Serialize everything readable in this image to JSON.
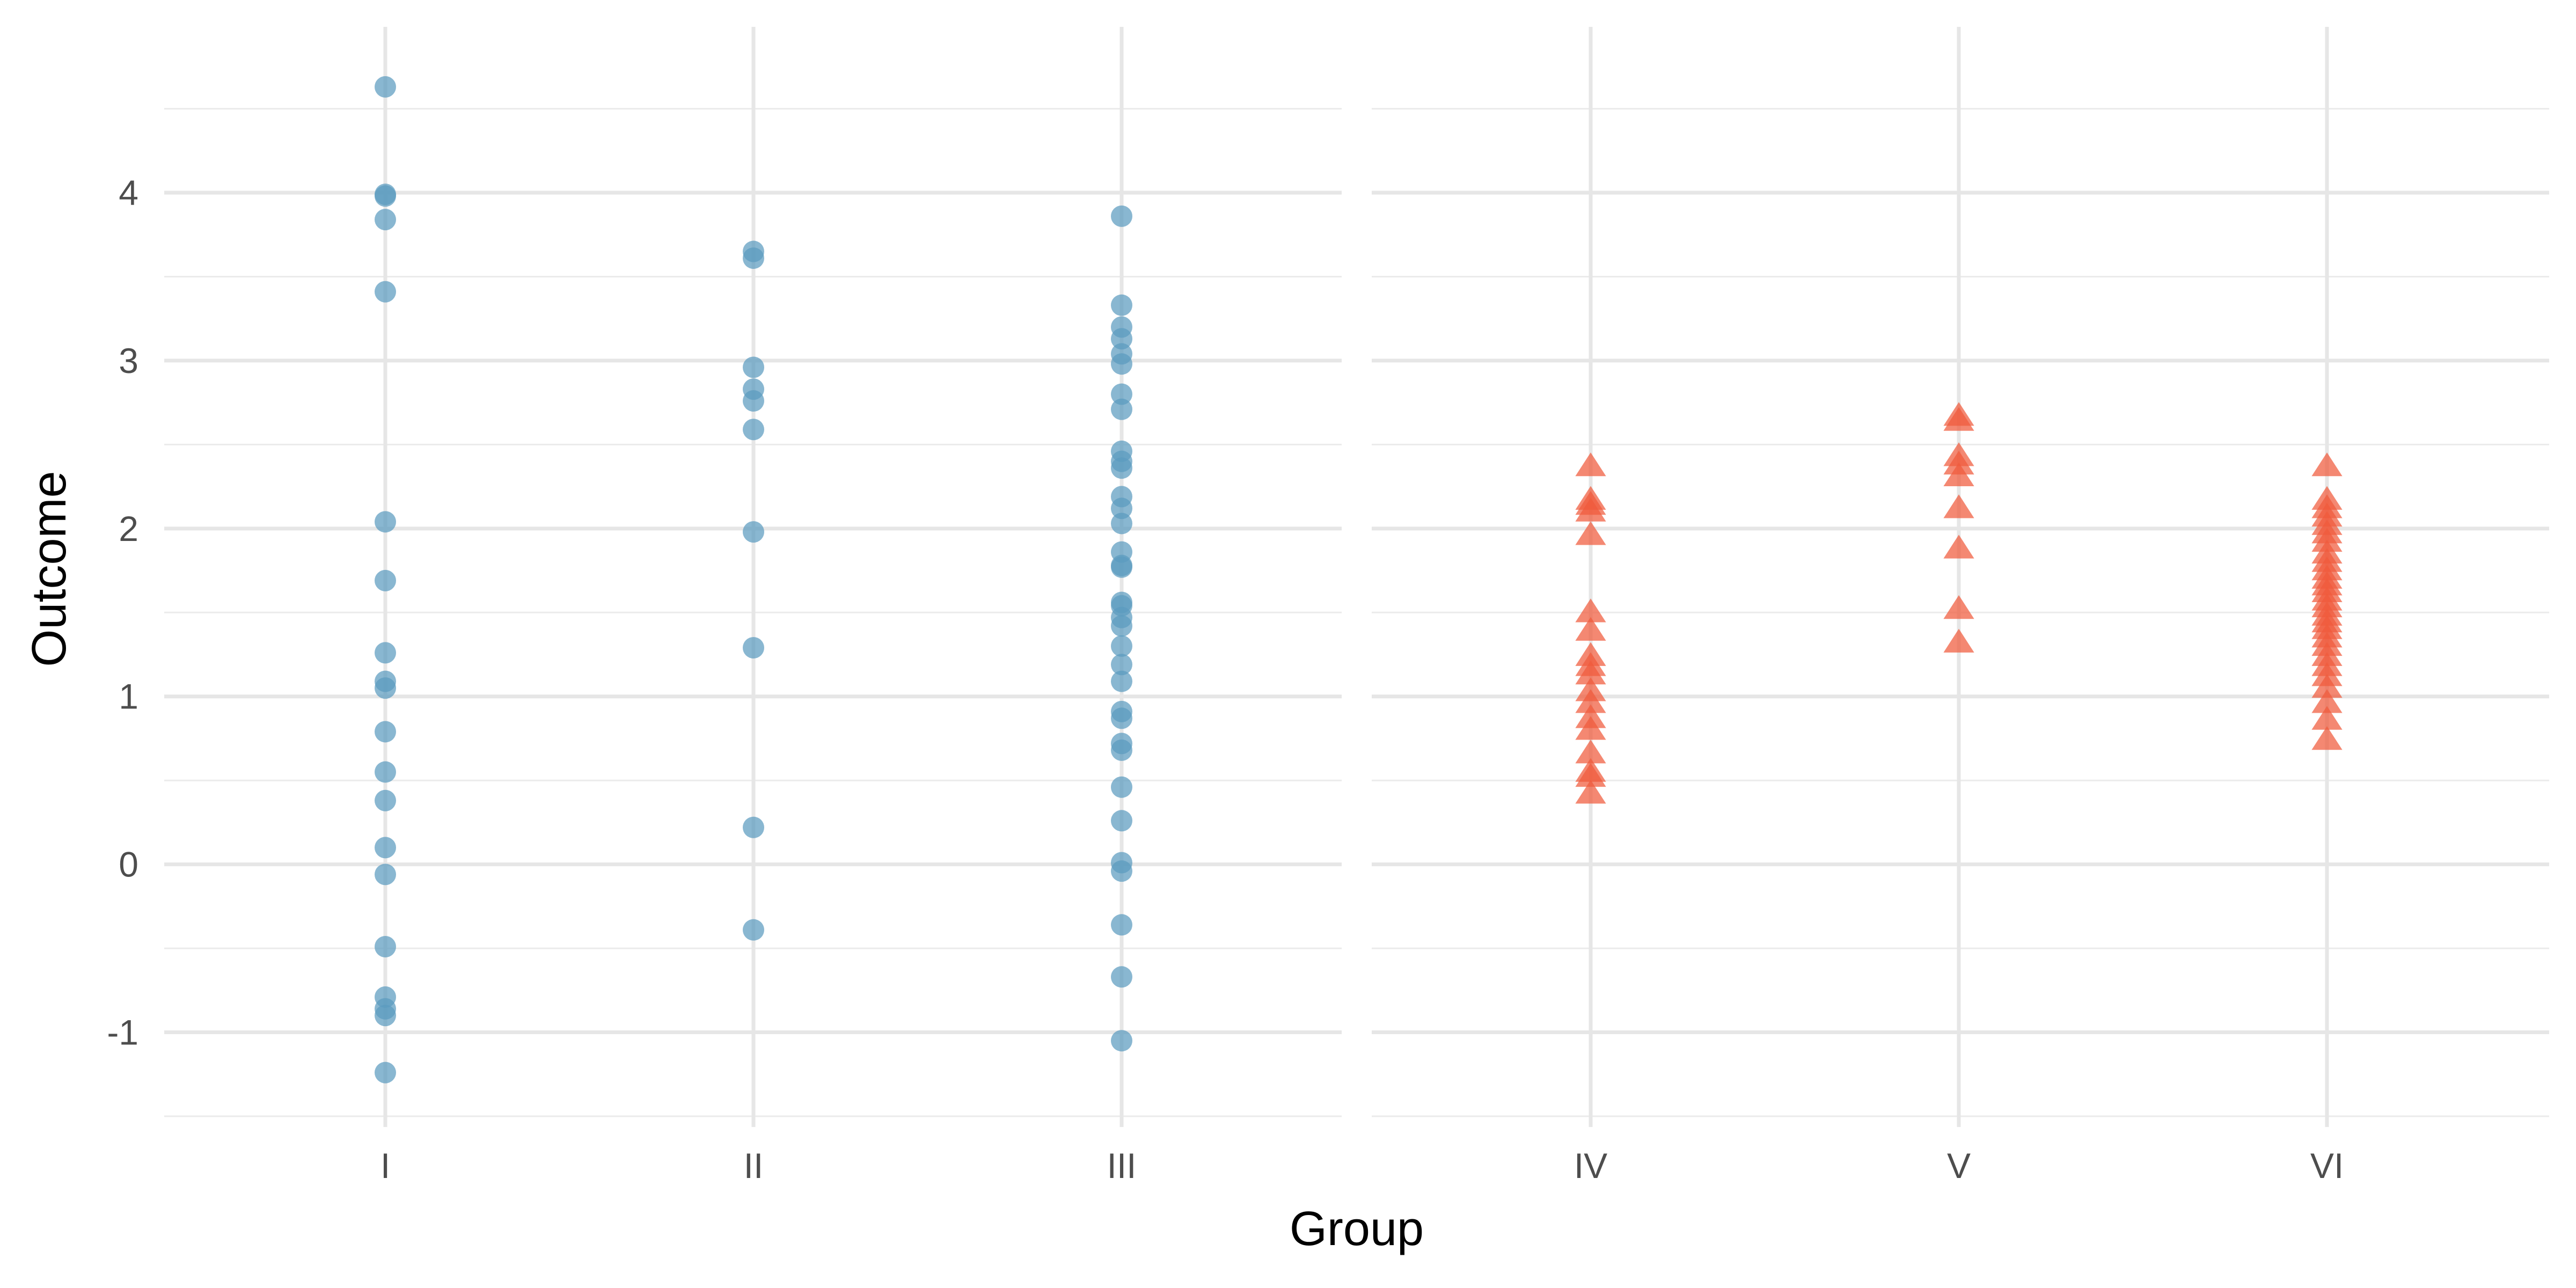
{
  "chart_data": {
    "type": "scatter",
    "xlabel": "Group",
    "ylabel": "Outcome",
    "ylim": [
      -1.5,
      4.7
    ],
    "y_ticks": [
      -1,
      0,
      1,
      2,
      3,
      4
    ],
    "y_tick_labels": [
      "-1",
      "0",
      "1",
      "2",
      "3",
      "4"
    ],
    "grid": true,
    "panels": [
      {
        "marker": "circle",
        "color": "#5b9bbf",
        "categories": [
          "I",
          "II",
          "III"
        ],
        "groups": [
          {
            "category": "I",
            "values": [
              4.63,
              3.99,
              3.98,
              3.84,
              3.41,
              2.04,
              1.69,
              1.26,
              1.09,
              1.05,
              0.79,
              0.55,
              0.38,
              0.1,
              -0.06,
              -0.49,
              -0.79,
              -0.86,
              -0.9,
              -1.24
            ]
          },
          {
            "category": "II",
            "values": [
              3.65,
              3.61,
              2.96,
              2.83,
              2.76,
              2.59,
              1.98,
              1.29,
              0.22,
              -0.39
            ]
          },
          {
            "category": "III",
            "values": [
              3.86,
              3.33,
              3.2,
              3.13,
              3.04,
              2.98,
              2.8,
              2.71,
              2.46,
              2.4,
              2.36,
              2.19,
              2.12,
              2.03,
              1.86,
              1.78,
              1.77,
              1.56,
              1.54,
              1.47,
              1.42,
              1.3,
              1.19,
              1.09,
              0.91,
              0.87,
              0.72,
              0.68,
              0.46,
              0.26,
              0.01,
              -0.04,
              -0.36,
              -0.67,
              -1.05
            ]
          }
        ]
      },
      {
        "marker": "triangle",
        "color": "#f05a3c",
        "categories": [
          "IV",
          "V",
          "VI"
        ],
        "groups": [
          {
            "category": "IV",
            "values": [
              2.37,
              2.17,
              2.14,
              2.1,
              1.96,
              1.5,
              1.39,
              1.24,
              1.18,
              1.13,
              1.03,
              0.96,
              0.87,
              0.8,
              0.66,
              0.55,
              0.52,
              0.42
            ]
          },
          {
            "category": "V",
            "values": [
              2.67,
              2.64,
              2.43,
              2.38,
              2.31,
              2.12,
              1.88,
              1.52,
              1.32
            ]
          },
          {
            "category": "VI",
            "values": [
              2.37,
              2.17,
              2.12,
              2.07,
              2.02,
              1.97,
              1.92,
              1.85,
              1.8,
              1.75,
              1.7,
              1.66,
              1.62,
              1.57,
              1.53,
              1.48,
              1.44,
              1.4,
              1.35,
              1.3,
              1.24,
              1.18,
              1.12,
              1.05,
              0.96,
              0.86,
              0.74
            ]
          }
        ]
      }
    ]
  }
}
